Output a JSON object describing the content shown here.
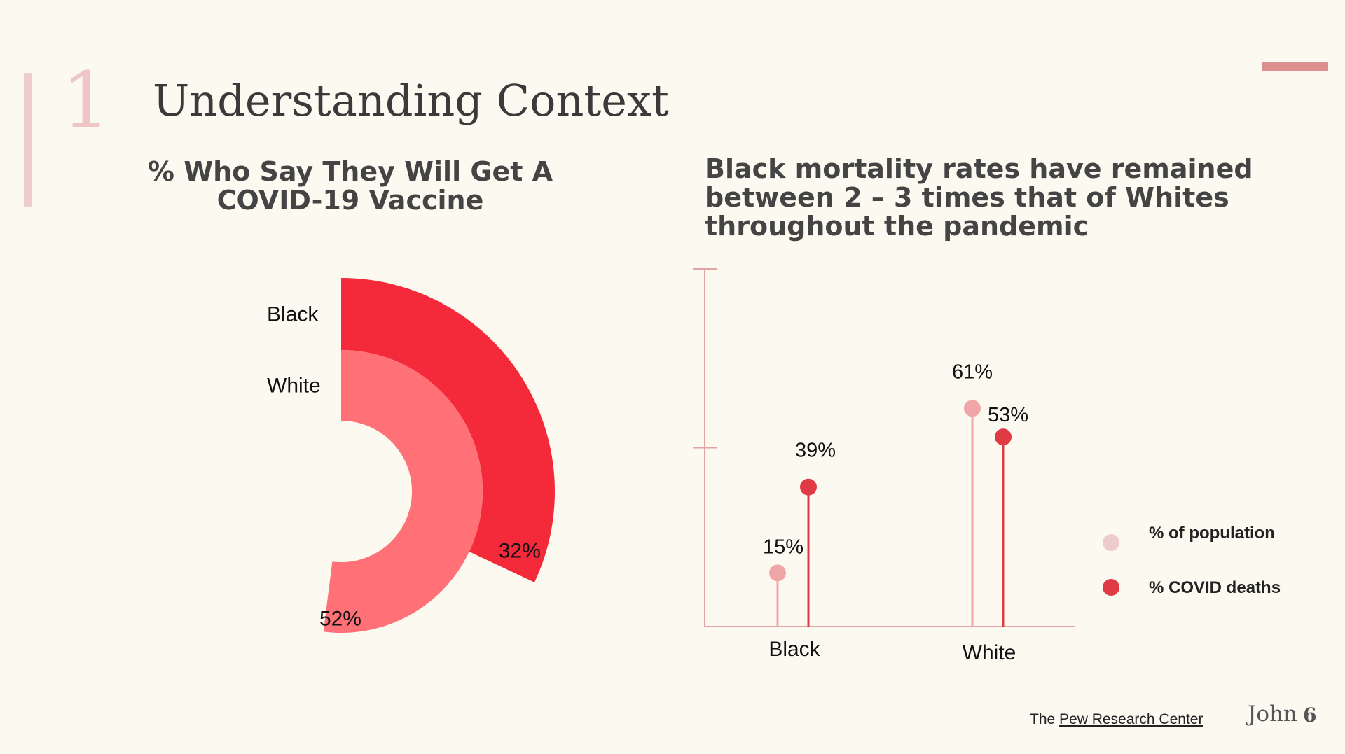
{
  "slide": {
    "number": "1",
    "title": "Understanding Context"
  },
  "footer": {
    "source_prefix": "The",
    "source_link": "Pew Research Center",
    "author": "John",
    "page": "6"
  },
  "colors": {
    "background": "#fbf9f0",
    "accent_light": "#efcccc",
    "accent_mid": "#dd8f8f",
    "black_series": "#f42a3a",
    "white_series": "#ff7177",
    "population": "#f0a6a6",
    "deaths": "#e03a44",
    "axis": "#e4a3a3"
  },
  "chart_data": [
    {
      "type": "radial-bar",
      "title": "% Who Say They Will Get A COVID-19 Vaccine",
      "categories": [
        "Black",
        "White"
      ],
      "values": [
        32,
        52
      ],
      "value_labels": [
        "32%",
        "52%"
      ],
      "unit": "%"
    },
    {
      "type": "lollipop",
      "title": "Black mortality rates have remained between 2 – 3 times that of Whites throughout the pandemic",
      "categories": [
        "Black",
        "White"
      ],
      "series": [
        {
          "name": "% of population",
          "values": [
            15,
            61
          ],
          "labels": [
            "15%",
            "61%"
          ]
        },
        {
          "name": "% COVID deaths",
          "values": [
            39,
            53
          ],
          "labels": [
            "39%",
            "53%"
          ]
        }
      ],
      "ylim": [
        0,
        100
      ],
      "legend_position": "right"
    }
  ]
}
